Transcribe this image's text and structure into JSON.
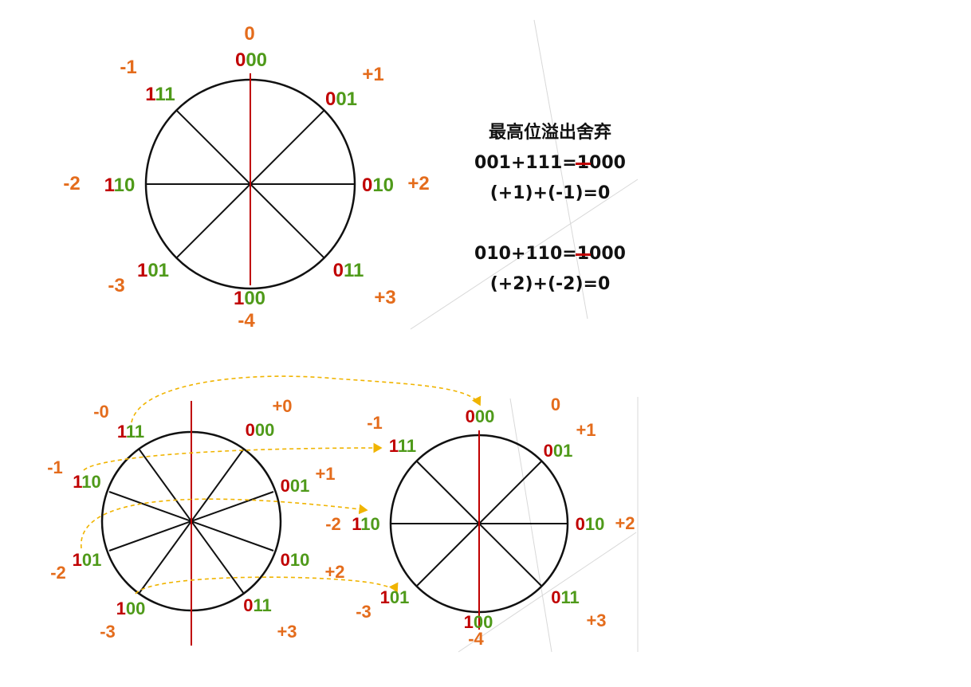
{
  "colors": {
    "orange": "#e46c1c",
    "red": "#c00000",
    "green": "#4f9a1a",
    "ink": "#111111",
    "dash": "#f0b400"
  },
  "top_circle": {
    "labels": [
      {
        "value": "0",
        "code_hi": "0",
        "code_lo": "00"
      },
      {
        "value": "+1",
        "code_hi": "0",
        "code_lo": "01"
      },
      {
        "value": "+2",
        "code_hi": "0",
        "code_lo": "10"
      },
      {
        "value": "+3",
        "code_hi": "0",
        "code_lo": "11"
      },
      {
        "value": "-4",
        "code_hi": "1",
        "code_lo": "00"
      },
      {
        "value": "-3",
        "code_hi": "1",
        "code_lo": "01"
      },
      {
        "value": "-2",
        "code_hi": "1",
        "code_lo": "10"
      },
      {
        "value": "-1",
        "code_hi": "1",
        "code_lo": "11"
      }
    ]
  },
  "notes": {
    "heading": "最高位溢出舍弃",
    "eq1_prefix": "001+111=",
    "eq1_carry": "1",
    "eq1_suffix": "000",
    "eq1_meaning": "(+1)+(-1)=0",
    "eq2_prefix": "010+110=",
    "eq2_carry": "1",
    "eq2_suffix": "000",
    "eq2_meaning": "(+2)+(-2)=0"
  },
  "left_circle": {
    "labels": [
      {
        "value": "-0",
        "code_hi": "1",
        "code_lo": "11"
      },
      {
        "value": "+0",
        "code_hi": "0",
        "code_lo": "00"
      },
      {
        "value": "-1",
        "code_hi": "1",
        "code_lo": "10"
      },
      {
        "value": "+1",
        "code_hi": "0",
        "code_lo": "01"
      },
      {
        "value": "-2",
        "code_hi": "1",
        "code_lo": "01"
      },
      {
        "value": "+2",
        "code_hi": "0",
        "code_lo": "10"
      },
      {
        "value": "-3",
        "code_hi": "1",
        "code_lo": "00"
      },
      {
        "value": "+3",
        "code_hi": "0",
        "code_lo": "11"
      }
    ]
  },
  "right_circle": {
    "labels": [
      {
        "value": "0",
        "code_hi": "0",
        "code_lo": "00"
      },
      {
        "value": "+1",
        "code_hi": "0",
        "code_lo": "01"
      },
      {
        "value": "+2",
        "code_hi": "0",
        "code_lo": "10"
      },
      {
        "value": "+3",
        "code_hi": "0",
        "code_lo": "11"
      },
      {
        "value": "-4",
        "code_hi": "1",
        "code_lo": "00"
      },
      {
        "value": "-3",
        "code_hi": "1",
        "code_lo": "01"
      },
      {
        "value": "-2",
        "code_hi": "1",
        "code_lo": "10"
      },
      {
        "value": "-1",
        "code_hi": "1",
        "code_lo": "11"
      }
    ]
  }
}
